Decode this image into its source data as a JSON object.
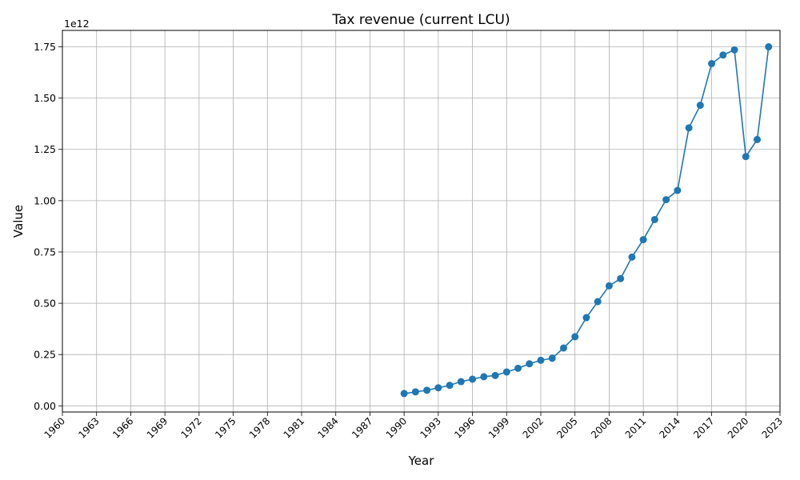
{
  "chart_data": {
    "type": "line",
    "title": "Tax revenue (current LCU)",
    "xlabel": "Year",
    "ylabel": "Value",
    "y_offset_label": "1e12",
    "xlim": [
      1960,
      2023
    ],
    "ylim": [
      -0.03,
      1.83
    ],
    "x_ticks": [
      1960,
      1963,
      1966,
      1969,
      1972,
      1975,
      1978,
      1981,
      1984,
      1987,
      1990,
      1993,
      1996,
      1999,
      2002,
      2005,
      2008,
      2011,
      2014,
      2017,
      2020,
      2023
    ],
    "y_ticks": [
      "0.00",
      "0.25",
      "0.50",
      "0.75",
      "1.00",
      "1.25",
      "1.50",
      "1.75"
    ],
    "grid": true,
    "line_color": "#1f77b4",
    "series": [
      {
        "x": [
          1990,
          1991,
          1992,
          1993,
          1994,
          1995,
          1996,
          1997,
          1998,
          1999,
          2000,
          2001,
          2002,
          2003,
          2004,
          2005,
          2006,
          2007,
          2008,
          2009,
          2010,
          2011,
          2012,
          2013,
          2014,
          2015,
          2016,
          2017,
          2018,
          2019,
          2020,
          2021,
          2022
        ],
        "values": [
          0.06,
          0.068,
          0.076,
          0.088,
          0.1,
          0.118,
          0.13,
          0.142,
          0.148,
          0.165,
          0.183,
          0.205,
          0.222,
          0.232,
          0.282,
          0.337,
          0.43,
          0.508,
          0.585,
          0.62,
          0.725,
          0.81,
          0.908,
          1.005,
          1.05,
          1.355,
          1.465,
          1.668,
          1.71,
          1.735,
          1.215,
          1.298,
          1.75
        ]
      }
    ]
  }
}
